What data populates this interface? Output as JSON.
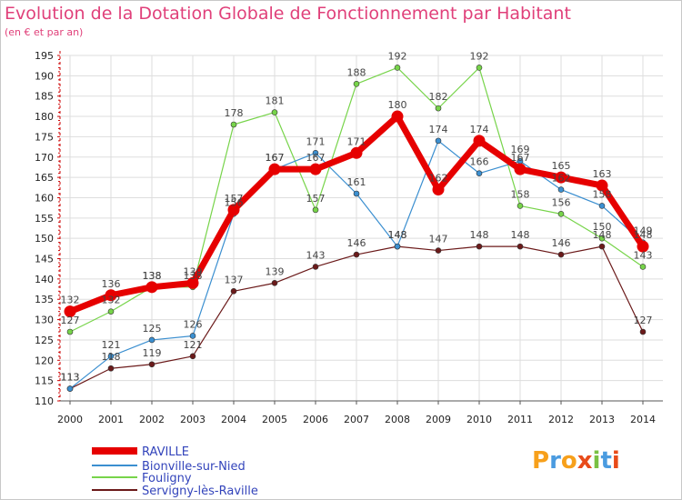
{
  "title": "Evolution de la Dotation Globale de Fonctionnement par Habitant",
  "subtitle": "(en € et par an)",
  "logo_text": "Proxiti",
  "chart_data": {
    "type": "line",
    "title": "Evolution de la Dotation Globale de Fonctionnement par Habitant",
    "ylabel": "(en € et par an)",
    "xlabel": "",
    "x": [
      "2000",
      "2001",
      "2002",
      "2003",
      "2004",
      "2005",
      "2006",
      "2007",
      "2008",
      "2009",
      "2010",
      "2011",
      "2012",
      "2013",
      "2014"
    ],
    "ylim": [
      110,
      195
    ],
    "yticks": [
      110,
      115,
      120,
      125,
      130,
      135,
      140,
      145,
      150,
      155,
      160,
      165,
      170,
      175,
      180,
      185,
      190,
      195
    ],
    "grid": true,
    "legend_position": "bottom-left",
    "series": [
      {
        "name": "RAVILLE",
        "color": "#e60000",
        "values": [
          132,
          136,
          138,
          139,
          157,
          167,
          167,
          171,
          180,
          162,
          174,
          167,
          165,
          163,
          148
        ],
        "labels": [
          "132",
          "136",
          "138",
          "139",
          "157",
          "167",
          "167",
          "171",
          "180",
          "162",
          "174",
          "167",
          "165",
          "163",
          "148"
        ]
      },
      {
        "name": "Bionville-sur-Nied",
        "color": "#3b8fd0",
        "values": [
          113,
          121,
          125,
          126,
          156,
          167,
          171,
          161,
          148,
          174,
          166,
          169,
          162,
          158,
          149
        ],
        "labels": [
          "113",
          "121",
          "125",
          "126",
          "156",
          "167",
          "171",
          "161",
          "148",
          "174",
          "166",
          "169",
          "162",
          "158",
          "149"
        ]
      },
      {
        "name": "Fouligny",
        "color": "#77d44a",
        "values": [
          127,
          132,
          138,
          138,
          178,
          181,
          157,
          188,
          192,
          182,
          192,
          158,
          156,
          150,
          143
        ],
        "labels": [
          "127",
          "132",
          "138",
          "138",
          "178",
          "181",
          "157",
          "188",
          "192",
          "182",
          "192",
          "158",
          "156",
          "150",
          "143"
        ]
      },
      {
        "name": "Servigny-lès-Raville",
        "color": "#6b1a1a",
        "values": [
          113,
          118,
          119,
          121,
          137,
          139,
          143,
          146,
          148,
          147,
          148,
          148,
          146,
          148,
          127
        ],
        "labels": [
          "113",
          "118",
          "119",
          "121",
          "137",
          "139",
          "143",
          "146",
          "148",
          "147",
          "148",
          "148",
          "146",
          "148",
          "127"
        ]
      }
    ]
  }
}
